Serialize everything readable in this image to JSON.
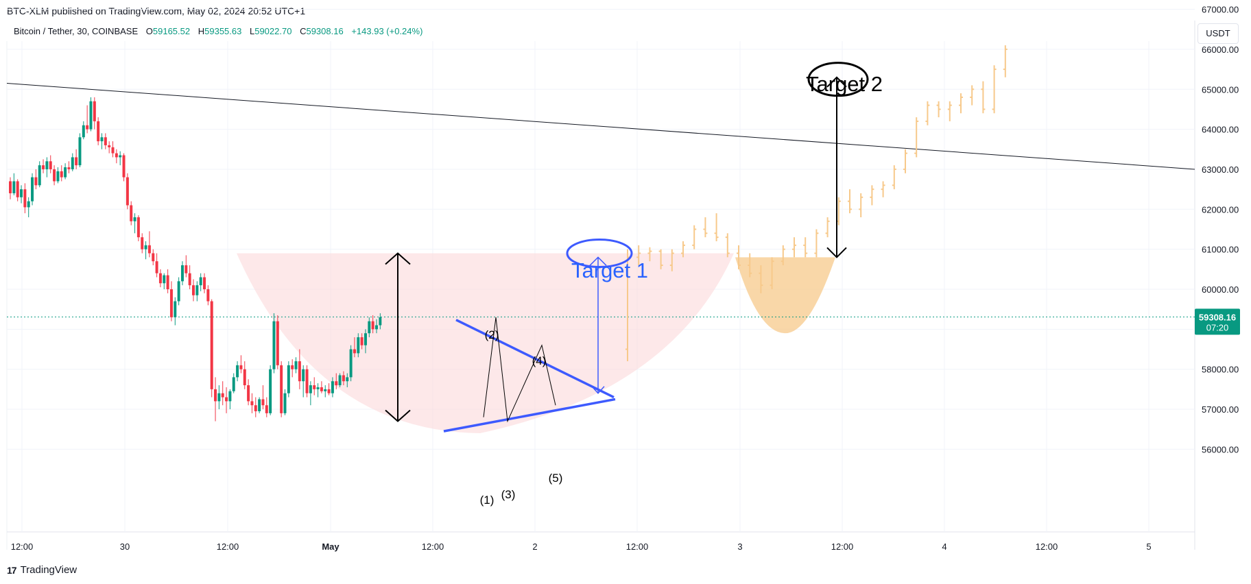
{
  "header": {
    "published_line": "BTC-XLM published on TradingView.com, May 02, 2024 20:52 UTC+1"
  },
  "legend": {
    "symbol": "Bitcoin / Tether, 30, COINBASE",
    "open_label": "O",
    "open": "59165.52",
    "high_label": "H",
    "high": "59355.63",
    "low_label": "L",
    "low": "59022.70",
    "close_label": "C",
    "close": "59308.16",
    "change": "+143.93 (+0.24%)"
  },
  "toolbar": {
    "currency": "USDT"
  },
  "footer": {
    "brand": "TradingView",
    "logo_text": "17"
  },
  "colors": {
    "up": "#089981",
    "down": "#f23645",
    "projection": "#f7c98b",
    "pattern_fill": "#fbd9db",
    "target2_fill": "#f7c98b",
    "pattern_line": "#3d5afe"
  },
  "chart_data": {
    "type": "candlestick",
    "symbol": "Bitcoin / Tether, 30, COINBASE",
    "y_ticks": [
      "67000.00",
      "66000.00",
      "65000.00",
      "64000.00",
      "63000.00",
      "62000.00",
      "61000.00",
      "60000.00",
      "59000.00",
      "58000.00",
      "57000.00",
      "56000.00"
    ],
    "ylim": [
      55000,
      67500
    ],
    "x_ticks": [
      "12:00",
      "30",
      "12:00",
      "May",
      "12:00",
      "2",
      "12:00",
      "3",
      "12:00",
      "4",
      "12:00",
      "5"
    ],
    "last_price": "59308.16",
    "countdown": "07:20",
    "trendline": {
      "from": {
        "x": "Apr 29 08:00",
        "y": 65150
      },
      "to": {
        "x": "May 5 10:00",
        "y": 63000
      }
    },
    "series": [
      {
        "name": "",
        "style": "candles",
        "values": [
          [
            62700,
            62800,
            62250,
            62400
          ],
          [
            62400,
            62900,
            62350,
            62700
          ],
          [
            62700,
            62750,
            62200,
            62300
          ],
          [
            62300,
            62600,
            62150,
            62500
          ],
          [
            62500,
            62650,
            61900,
            62050
          ],
          [
            62050,
            62300,
            61800,
            62200
          ],
          [
            62200,
            62900,
            62100,
            62800
          ],
          [
            62800,
            63000,
            62500,
            62600
          ],
          [
            62600,
            63200,
            62550,
            63100
          ],
          [
            63100,
            63250,
            62900,
            63000
          ],
          [
            63000,
            63300,
            62800,
            63200
          ],
          [
            63200,
            63350,
            62900,
            63000
          ],
          [
            63000,
            63100,
            62600,
            62700
          ],
          [
            62700,
            63050,
            62650,
            62950
          ],
          [
            62950,
            63100,
            62700,
            62800
          ],
          [
            62800,
            63150,
            62750,
            63050
          ],
          [
            63050,
            63200,
            62900,
            63000
          ],
          [
            63000,
            63400,
            62950,
            63300
          ],
          [
            63300,
            63500,
            63000,
            63100
          ],
          [
            63100,
            63900,
            63050,
            63800
          ],
          [
            63800,
            64200,
            63750,
            64100
          ],
          [
            64100,
            64600,
            63900,
            64000
          ],
          [
            64000,
            64800,
            63950,
            64700
          ],
          [
            64700,
            64800,
            64000,
            64200
          ],
          [
            64200,
            64300,
            63600,
            63700
          ],
          [
            63700,
            63900,
            63500,
            63800
          ],
          [
            63800,
            63900,
            63500,
            63600
          ],
          [
            63600,
            63700,
            63400,
            63550
          ],
          [
            63550,
            63700,
            63300,
            63400
          ],
          [
            63400,
            63500,
            63150,
            63300
          ],
          [
            63300,
            63450,
            63100,
            63350
          ],
          [
            63350,
            63400,
            62700,
            62800
          ],
          [
            62800,
            62900,
            62000,
            62100
          ],
          [
            62100,
            62200,
            61600,
            61700
          ],
          [
            61700,
            61900,
            61400,
            61800
          ],
          [
            61800,
            61850,
            61200,
            61300
          ],
          [
            61300,
            61400,
            60900,
            61000
          ],
          [
            61000,
            61200,
            60750,
            61100
          ],
          [
            61100,
            61450,
            60800,
            60900
          ],
          [
            60900,
            61000,
            60600,
            60700
          ],
          [
            60700,
            60900,
            60300,
            60400
          ],
          [
            60400,
            60500,
            60050,
            60150
          ],
          [
            60150,
            60400,
            60000,
            60350
          ],
          [
            60350,
            60500,
            59900,
            60000
          ],
          [
            60000,
            60200,
            59200,
            59300
          ],
          [
            59300,
            59800,
            59100,
            59700
          ],
          [
            59700,
            60300,
            59600,
            60200
          ],
          [
            60200,
            60700,
            60100,
            60600
          ],
          [
            60600,
            60850,
            60300,
            60400
          ],
          [
            60400,
            60600,
            60000,
            60100
          ],
          [
            60100,
            60250,
            59700,
            59850
          ],
          [
            59850,
            60200,
            59700,
            60100
          ],
          [
            60100,
            60400,
            59950,
            60300
          ],
          [
            60300,
            60400,
            59900,
            60000
          ],
          [
            60000,
            60100,
            59600,
            59700
          ],
          [
            59700,
            59750,
            57300,
            57500
          ],
          [
            57500,
            57800,
            56700,
            57200
          ],
          [
            57200,
            57600,
            57000,
            57400
          ],
          [
            57400,
            57700,
            57100,
            57300
          ],
          [
            57300,
            57550,
            56900,
            57200
          ],
          [
            57200,
            57500,
            57000,
            57450
          ],
          [
            57450,
            57900,
            57400,
            57800
          ],
          [
            57800,
            58200,
            57700,
            58100
          ],
          [
            58100,
            58350,
            57900,
            58000
          ],
          [
            58000,
            58200,
            57500,
            57600
          ],
          [
            57600,
            57750,
            57100,
            57200
          ],
          [
            57200,
            57400,
            56900,
            57100
          ],
          [
            57100,
            57300,
            56800,
            56950
          ],
          [
            56950,
            57300,
            56900,
            57250
          ],
          [
            57250,
            57600,
            57000,
            57100
          ],
          [
            57100,
            57300,
            56800,
            56900
          ],
          [
            56900,
            58100,
            56850,
            58000
          ],
          [
            58000,
            59400,
            57900,
            59200
          ],
          [
            59200,
            59350,
            58000,
            58100
          ],
          [
            58100,
            58200,
            56800,
            56900
          ],
          [
            56900,
            57500,
            56850,
            57400
          ],
          [
            57400,
            58200,
            57300,
            58100
          ],
          [
            58100,
            58250,
            57800,
            58000
          ],
          [
            58000,
            58300,
            57900,
            58200
          ],
          [
            58200,
            58500,
            57500,
            57700
          ],
          [
            57700,
            58100,
            57300,
            58000
          ],
          [
            58000,
            58100,
            57300,
            57400
          ],
          [
            57400,
            57700,
            57100,
            57600
          ],
          [
            57600,
            57800,
            57350,
            57500
          ],
          [
            57500,
            57650,
            57300,
            57550
          ],
          [
            57550,
            57700,
            57400,
            57450
          ],
          [
            57450,
            57600,
            57300,
            57500
          ],
          [
            57500,
            57650,
            57350,
            57400
          ],
          [
            57400,
            57800,
            57300,
            57700
          ],
          [
            57700,
            57900,
            57500,
            57600
          ],
          [
            57600,
            57900,
            57550,
            57850
          ],
          [
            57850,
            57950,
            57600,
            57700
          ],
          [
            57700,
            57900,
            57550,
            57800
          ],
          [
            57800,
            58600,
            57700,
            58500
          ],
          [
            58500,
            58800,
            58300,
            58400
          ],
          [
            58400,
            58900,
            58300,
            58800
          ],
          [
            58800,
            58900,
            58500,
            58600
          ],
          [
            58600,
            59000,
            58400,
            58900
          ],
          [
            58900,
            59300,
            58800,
            59200
          ],
          [
            59200,
            59350,
            58900,
            59000
          ],
          [
            59000,
            59250,
            58900,
            59100
          ],
          [
            59100,
            59400,
            59000,
            59300
          ]
        ]
      },
      {
        "name": "",
        "style": "projection",
        "values": [
          [
            58500,
            61000,
            58200,
            60800
          ],
          [
            60800,
            61100,
            60600,
            60900
          ],
          [
            60900,
            61050,
            60700,
            60950
          ],
          [
            60950,
            61000,
            60500,
            60600
          ],
          [
            60600,
            61000,
            60450,
            60900
          ],
          [
            60900,
            61200,
            60800,
            61100
          ],
          [
            61100,
            61600,
            61000,
            61500
          ],
          [
            61500,
            61800,
            61300,
            61400
          ],
          [
            61400,
            61900,
            61200,
            61300
          ],
          [
            61300,
            61400,
            60800,
            60900
          ],
          [
            60900,
            61100,
            60500,
            60600
          ],
          [
            60600,
            60900,
            60300,
            60400
          ],
          [
            60400,
            60600,
            59900,
            60100
          ],
          [
            60100,
            60800,
            60000,
            60700
          ],
          [
            60700,
            61100,
            60600,
            61000
          ],
          [
            61000,
            61300,
            60800,
            61100
          ],
          [
            61100,
            61300,
            60800,
            60900
          ],
          [
            60900,
            61500,
            60800,
            61400
          ],
          [
            61400,
            61800,
            61300,
            61700
          ],
          [
            61700,
            62300,
            61600,
            62200
          ],
          [
            62200,
            62500,
            61900,
            62000
          ],
          [
            62000,
            62400,
            61800,
            62300
          ],
          [
            62300,
            62600,
            62100,
            62500
          ],
          [
            62500,
            62700,
            62300,
            62600
          ],
          [
            62600,
            63100,
            62500,
            63000
          ],
          [
            63000,
            63500,
            62900,
            63400
          ],
          [
            63400,
            64300,
            63300,
            64200
          ],
          [
            64200,
            64700,
            64100,
            64600
          ],
          [
            64600,
            64700,
            64300,
            64500
          ],
          [
            64500,
            64700,
            64200,
            64600
          ],
          [
            64600,
            64900,
            64400,
            64800
          ],
          [
            64800,
            65100,
            64600,
            65000
          ],
          [
            65000,
            65200,
            64400,
            64500
          ],
          [
            64500,
            65600,
            64400,
            65500
          ],
          [
            65500,
            66100,
            65300,
            66000
          ]
        ]
      }
    ],
    "annotations": {
      "target1": "Target 1",
      "target2": "Target 2",
      "wave_labels": [
        "(1)",
        "(2)",
        "(3)",
        "(4)",
        "(5)"
      ]
    }
  }
}
